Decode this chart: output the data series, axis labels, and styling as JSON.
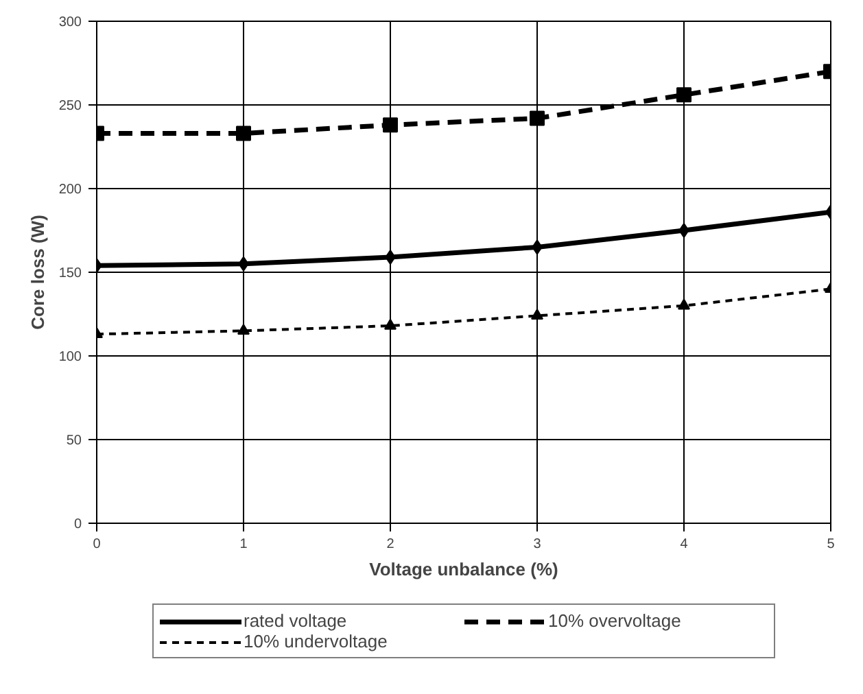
{
  "chart_data": {
    "type": "line",
    "xlabel": "Voltage unbalance (%)",
    "ylabel": "Core loss (W)",
    "x": [
      0,
      1,
      2,
      3,
      4,
      5
    ],
    "xlim": [
      0,
      5
    ],
    "xticks": [
      0,
      1,
      2,
      3,
      4,
      5
    ],
    "ylim": [
      0,
      300
    ],
    "yticks": [
      0,
      50,
      100,
      150,
      200,
      250,
      300
    ],
    "grid": true,
    "legend": "bottom",
    "series": [
      {
        "name": "rated voltage",
        "color": "#000000",
        "values": [
          154,
          155,
          159,
          165,
          175,
          186
        ],
        "marker": "diamond",
        "line_style": "solid"
      },
      {
        "name": "10% overvoltage",
        "color": "#000000",
        "values": [
          233,
          233,
          238,
          242,
          256,
          270
        ],
        "marker": "square",
        "line_style": "dashed"
      },
      {
        "name": "10% undervoltage",
        "color": "#000000",
        "values": [
          113,
          115,
          118,
          124,
          130,
          140
        ],
        "marker": "triangle",
        "line_style": "dotted"
      }
    ]
  }
}
